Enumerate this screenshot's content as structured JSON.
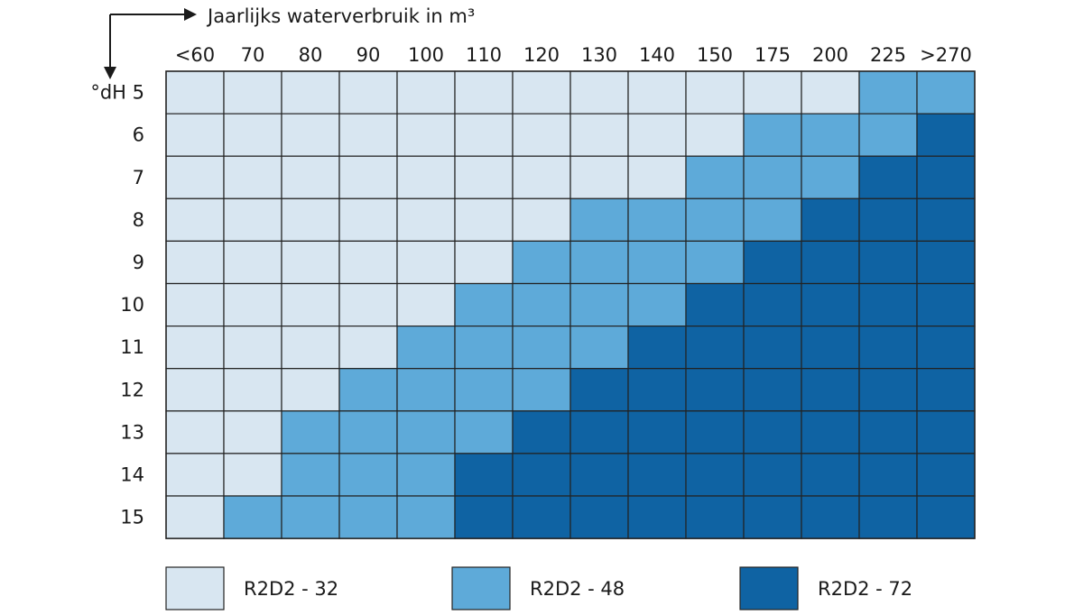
{
  "chart_data": {
    "type": "heatmap",
    "title": "",
    "xlabel": "Jaarlijks waterverbruik in m³",
    "ylabel": "°dH",
    "x_categories": [
      "<60",
      "70",
      "80",
      "90",
      "100",
      "110",
      "120",
      "130",
      "140",
      "150",
      "175",
      "200",
      "225",
      ">270"
    ],
    "y_categories": [
      "5",
      "6",
      "7",
      "8",
      "9",
      "10",
      "11",
      "12",
      "13",
      "14",
      "15"
    ],
    "y_first_label": "°dH 5",
    "legend": [
      {
        "key": "R2D2 - 32",
        "label": "R2D2 - 32",
        "color": "#d8e6f1"
      },
      {
        "key": "R2D2 - 48",
        "label": "R2D2 - 48",
        "color": "#5eaad9"
      },
      {
        "key": "R2D2 - 72",
        "label": "R2D2 - 72",
        "color": "#0f63a3"
      }
    ],
    "legend_position": "bottom",
    "values": [
      [
        "R2D2 - 32",
        "R2D2 - 32",
        "R2D2 - 32",
        "R2D2 - 32",
        "R2D2 - 32",
        "R2D2 - 32",
        "R2D2 - 32",
        "R2D2 - 32",
        "R2D2 - 32",
        "R2D2 - 32",
        "R2D2 - 32",
        "R2D2 - 32",
        "R2D2 - 48",
        "R2D2 - 48"
      ],
      [
        "R2D2 - 32",
        "R2D2 - 32",
        "R2D2 - 32",
        "R2D2 - 32",
        "R2D2 - 32",
        "R2D2 - 32",
        "R2D2 - 32",
        "R2D2 - 32",
        "R2D2 - 32",
        "R2D2 - 32",
        "R2D2 - 48",
        "R2D2 - 48",
        "R2D2 - 48",
        "R2D2 - 72"
      ],
      [
        "R2D2 - 32",
        "R2D2 - 32",
        "R2D2 - 32",
        "R2D2 - 32",
        "R2D2 - 32",
        "R2D2 - 32",
        "R2D2 - 32",
        "R2D2 - 32",
        "R2D2 - 32",
        "R2D2 - 48",
        "R2D2 - 48",
        "R2D2 - 48",
        "R2D2 - 72",
        "R2D2 - 72"
      ],
      [
        "R2D2 - 32",
        "R2D2 - 32",
        "R2D2 - 32",
        "R2D2 - 32",
        "R2D2 - 32",
        "R2D2 - 32",
        "R2D2 - 32",
        "R2D2 - 48",
        "R2D2 - 48",
        "R2D2 - 48",
        "R2D2 - 48",
        "R2D2 - 72",
        "R2D2 - 72",
        "R2D2 - 72"
      ],
      [
        "R2D2 - 32",
        "R2D2 - 32",
        "R2D2 - 32",
        "R2D2 - 32",
        "R2D2 - 32",
        "R2D2 - 32",
        "R2D2 - 48",
        "R2D2 - 48",
        "R2D2 - 48",
        "R2D2 - 48",
        "R2D2 - 72",
        "R2D2 - 72",
        "R2D2 - 72",
        "R2D2 - 72"
      ],
      [
        "R2D2 - 32",
        "R2D2 - 32",
        "R2D2 - 32",
        "R2D2 - 32",
        "R2D2 - 32",
        "R2D2 - 48",
        "R2D2 - 48",
        "R2D2 - 48",
        "R2D2 - 48",
        "R2D2 - 72",
        "R2D2 - 72",
        "R2D2 - 72",
        "R2D2 - 72",
        "R2D2 - 72"
      ],
      [
        "R2D2 - 32",
        "R2D2 - 32",
        "R2D2 - 32",
        "R2D2 - 32",
        "R2D2 - 48",
        "R2D2 - 48",
        "R2D2 - 48",
        "R2D2 - 48",
        "R2D2 - 72",
        "R2D2 - 72",
        "R2D2 - 72",
        "R2D2 - 72",
        "R2D2 - 72",
        "R2D2 - 72"
      ],
      [
        "R2D2 - 32",
        "R2D2 - 32",
        "R2D2 - 32",
        "R2D2 - 48",
        "R2D2 - 48",
        "R2D2 - 48",
        "R2D2 - 48",
        "R2D2 - 72",
        "R2D2 - 72",
        "R2D2 - 72",
        "R2D2 - 72",
        "R2D2 - 72",
        "R2D2 - 72",
        "R2D2 - 72"
      ],
      [
        "R2D2 - 32",
        "R2D2 - 32",
        "R2D2 - 48",
        "R2D2 - 48",
        "R2D2 - 48",
        "R2D2 - 48",
        "R2D2 - 72",
        "R2D2 - 72",
        "R2D2 - 72",
        "R2D2 - 72",
        "R2D2 - 72",
        "R2D2 - 72",
        "R2D2 - 72",
        "R2D2 - 72"
      ],
      [
        "R2D2 - 32",
        "R2D2 - 32",
        "R2D2 - 48",
        "R2D2 - 48",
        "R2D2 - 48",
        "R2D2 - 72",
        "R2D2 - 72",
        "R2D2 - 72",
        "R2D2 - 72",
        "R2D2 - 72",
        "R2D2 - 72",
        "R2D2 - 72",
        "R2D2 - 72",
        "R2D2 - 72"
      ],
      [
        "R2D2 - 32",
        "R2D2 - 48",
        "R2D2 - 48",
        "R2D2 - 48",
        "R2D2 - 48",
        "R2D2 - 72",
        "R2D2 - 72",
        "R2D2 - 72",
        "R2D2 - 72",
        "R2D2 - 72",
        "R2D2 - 72",
        "R2D2 - 72",
        "R2D2 - 72",
        "R2D2 - 72"
      ]
    ]
  }
}
